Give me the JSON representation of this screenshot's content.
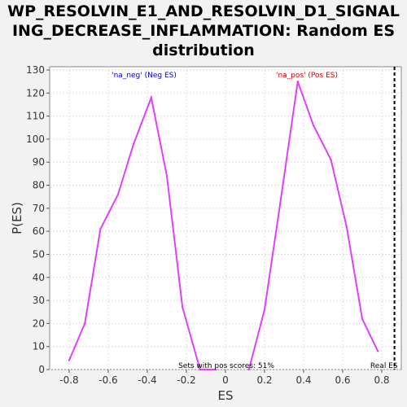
{
  "chart_data": {
    "type": "line",
    "title": "WP_RESOLVIN_E1_AND_RESOLVIN_D1_SIGNALING_DECREASE_INFLAMMATION: Random ES distribution",
    "title_lines": [
      "WP_RESOLVIN_E1_AND_RESOLVIN_D1_SIGNAL",
      "ING_DECREASE_INFLAMMATION: Random ES",
      "distribution"
    ],
    "xlabel": "ES",
    "ylabel": "P(ES)",
    "xlim": [
      -0.9,
      0.9
    ],
    "ylim": [
      0,
      130
    ],
    "x_ticks": [
      -0.8,
      -0.6,
      -0.4,
      -0.2,
      0,
      0.2,
      0.4,
      0.6,
      0.8
    ],
    "x_tick_labels": [
      "-0.8",
      "-0.6",
      "-0.4",
      "-0.2",
      "0",
      "0.2",
      "0.4",
      "0.6",
      "0.8"
    ],
    "y_ticks": [
      0,
      10,
      20,
      30,
      40,
      50,
      60,
      70,
      80,
      90,
      100,
      110,
      120,
      130
    ],
    "y_tick_labels": [
      "0",
      "10",
      "20",
      "30",
      "40",
      "50",
      "60",
      "70",
      "80",
      "90",
      "100",
      "110",
      "120",
      "130"
    ],
    "grid": true,
    "series": [
      {
        "name": "'na_neg' (Neg ES)",
        "color": "#e040fb",
        "label_color": "#0000cc",
        "x": [
          -0.8,
          -0.72,
          -0.64,
          -0.55,
          -0.47,
          -0.38,
          -0.3,
          -0.22,
          -0.13,
          -0.05
        ],
        "y": [
          4,
          20,
          61,
          76,
          98,
          118,
          84,
          27,
          0,
          0
        ]
      },
      {
        "name": "'na_pos' (Pos ES)",
        "color": "#e040fb",
        "label_color": "#cc0000",
        "x": [
          0.12,
          0.2,
          0.28,
          0.37,
          0.45,
          0.54,
          0.62,
          0.7,
          0.78
        ],
        "y": [
          0,
          26,
          72,
          125,
          106,
          91,
          62,
          22,
          8
        ]
      }
    ],
    "annotations": {
      "pos_scores": "Sets with pos scores: 51%",
      "real_es_label": "Real ES",
      "real_es_value": 0.865
    }
  }
}
